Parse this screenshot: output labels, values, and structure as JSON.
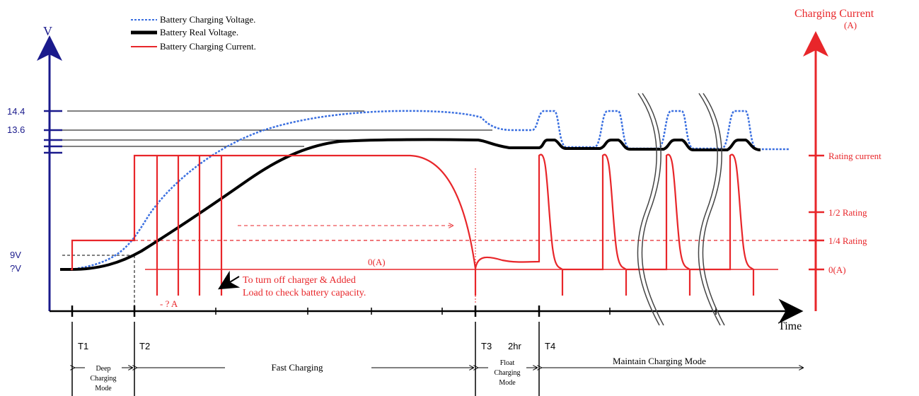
{
  "colors": {
    "axis_blue": "#1a1a8c",
    "red": "#e8262a",
    "dotted_blue": "#3a6fe0",
    "black": "#000000",
    "grey": "#555555"
  },
  "legend": {
    "charging_voltage": "Battery Charging Voltage.",
    "real_voltage": "Battery Real Voltage.",
    "charging_current": "Battery Charging Current."
  },
  "left_axis": {
    "label": "V",
    "ticks": [
      "14.4",
      "13.6",
      "9V",
      "?V"
    ]
  },
  "right_axis": {
    "title_line1": "Charging Current",
    "title_line2": "(A)",
    "ticks": [
      "Rating current",
      "1/2 Rating",
      "1/4 Rating",
      "0(A)"
    ]
  },
  "x_axis": {
    "label": "Time",
    "ticks": [
      "T1",
      "T2",
      "T3",
      "2hr",
      "T4"
    ]
  },
  "annotations": {
    "zero_current": "0(A)",
    "negative_current": "- ? A",
    "turn_off_line1": "To turn off charger & Added",
    "turn_off_line2": "Load to check battery capacity."
  },
  "modes": {
    "deep_line1": "Deep",
    "deep_line2": "Charging",
    "deep_line3": "Mode",
    "fast": "Fast Charging",
    "float_line1": "Float",
    "float_line2": "Charging",
    "float_line3": "Mode",
    "maintain": "Maintain Charging Mode"
  }
}
